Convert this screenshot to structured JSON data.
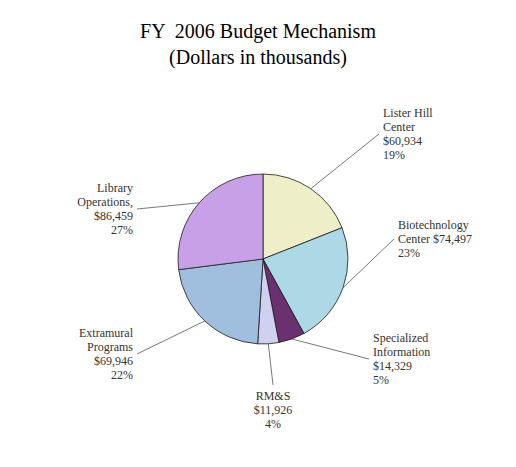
{
  "chart_data": {
    "type": "pie",
    "title": "FY  2006 Budget Mechanism",
    "subtitle": "(Dollars in thousands)",
    "categories": [
      "Lister Hill\nCenter\n$60,934\n19%",
      "Biotechnology\nCenter $74,497\n23%",
      "Specialized\nInformation\n$14,329\n5%",
      "RM&S\n$11,926\n4%",
      "Extramural\nPrograms\n$69,946\n22%",
      "Library\nOperations,\n$86,459\n27%"
    ],
    "values": [
      19,
      23,
      5,
      4,
      22,
      27
    ],
    "colors": [
      "#eeeec8",
      "#add8e6",
      "#6b3070",
      "#d0d0f0",
      "#a0bede",
      "#c8a0e8"
    ]
  }
}
